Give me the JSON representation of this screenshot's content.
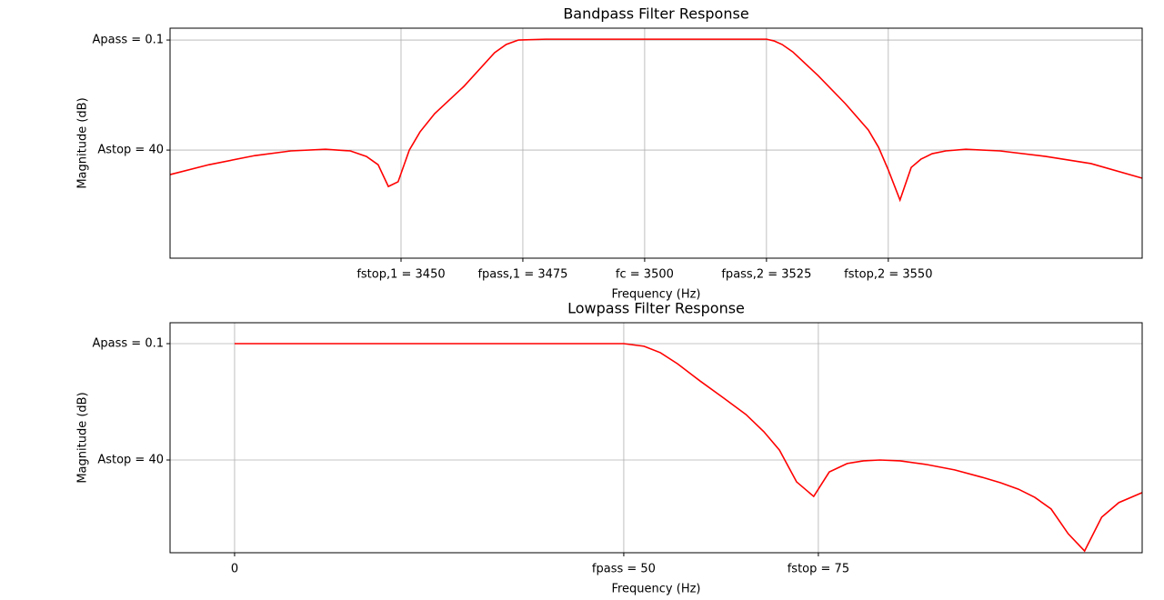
{
  "chart_data": [
    {
      "type": "line",
      "title": "Bandpass Filter Response",
      "x_label": "Frequency (Hz)",
      "y_label": "Magnitude (dB)",
      "color": "#ff0000",
      "grid": true,
      "xlim": [
        3402.6,
        3602.1
      ],
      "ylim": [
        -79.2,
        4.2
      ],
      "xticks": [
        {
          "value": 3450,
          "label": "fstop,1 = 3450"
        },
        {
          "value": 3475,
          "label": "fpass,1 = 3475"
        },
        {
          "value": 3500,
          "label": "fc = 3500"
        },
        {
          "value": 3525,
          "label": "fpass,2 = 3525"
        },
        {
          "value": 3550,
          "label": "fstop,2 = 3550"
        }
      ],
      "yticks": [
        {
          "value": -0.1,
          "label": "Apass = 0.1"
        },
        {
          "value": -40,
          "label": "Astop = 40"
        }
      ],
      "x": [
        3402.6,
        3410.6,
        3420.0,
        3427.4,
        3434.5,
        3439.6,
        3442.9,
        3445.3,
        3447.4,
        3449.4,
        3451.7,
        3453.9,
        3456.9,
        3462.9,
        3469.2,
        3471.6,
        3474.1,
        3479.7,
        3489.0,
        3500,
        3511.4,
        3518.8,
        3525,
        3526.5,
        3528.2,
        3530.4,
        3535.6,
        3541.2,
        3545.9,
        3548.0,
        3550.0,
        3552.4,
        3554.7,
        3556.7,
        3559.0,
        3561.8,
        3565.9,
        3572.9,
        3582.3,
        3591.6,
        3602.1
      ],
      "values": [
        -48.9,
        -45.3,
        -42.0,
        -40.3,
        -39.7,
        -40.3,
        -42.3,
        -45.3,
        -53.2,
        -51.5,
        -40.0,
        -33.4,
        -26.8,
        -16.9,
        -4.7,
        -1.7,
        -0.1,
        0.2,
        0.2,
        0.2,
        0.2,
        0.2,
        0.2,
        -0.4,
        -1.7,
        -4.4,
        -13.0,
        -23.2,
        -32.7,
        -39.0,
        -47.2,
        -58.1,
        -46.3,
        -43.3,
        -41.3,
        -40.3,
        -39.7,
        -40.3,
        -42.3,
        -44.9,
        -50.2
      ]
    },
    {
      "type": "line",
      "title": "Lowpass Filter Response",
      "x_label": "Frequency (Hz)",
      "y_label": "Magnitude (dB)",
      "color": "#ff0000",
      "grid": true,
      "xlim": [
        -8.29,
        116.6
      ],
      "ylim": [
        -71.8,
        7.07
      ],
      "xticks": [
        0,
        {
          "value": 50,
          "label": "fpass = 50"
        },
        {
          "value": 75,
          "label": "fstop = 75"
        }
      ],
      "yticks": [
        {
          "value": -0.1,
          "label": "Apass = 0.1"
        },
        {
          "value": -40,
          "label": "Astop = 40"
        }
      ],
      "x": [
        0,
        16.6,
        34.1,
        44.6,
        50,
        52.6,
        54.7,
        56.9,
        59.8,
        62.7,
        65.7,
        68.0,
        70.0,
        72.2,
        74.4,
        76.4,
        78.7,
        80.8,
        82.9,
        85.5,
        89.0,
        92.5,
        96.0,
        98.4,
        100.7,
        102.8,
        104.9,
        107.1,
        109.2,
        111.4,
        113.6,
        116.6
      ],
      "values": [
        -0.1,
        -0.1,
        -0.1,
        -0.1,
        -0.1,
        -1.0,
        -3.2,
        -7.0,
        -12.9,
        -18.5,
        -24.4,
        -30.3,
        -36.6,
        -47.5,
        -52.5,
        -44.1,
        -41.2,
        -40.3,
        -40.0,
        -40.3,
        -41.6,
        -43.4,
        -45.9,
        -47.8,
        -50.0,
        -52.8,
        -56.8,
        -65.3,
        -71.2,
        -59.6,
        -54.6,
        -51.2
      ]
    }
  ]
}
